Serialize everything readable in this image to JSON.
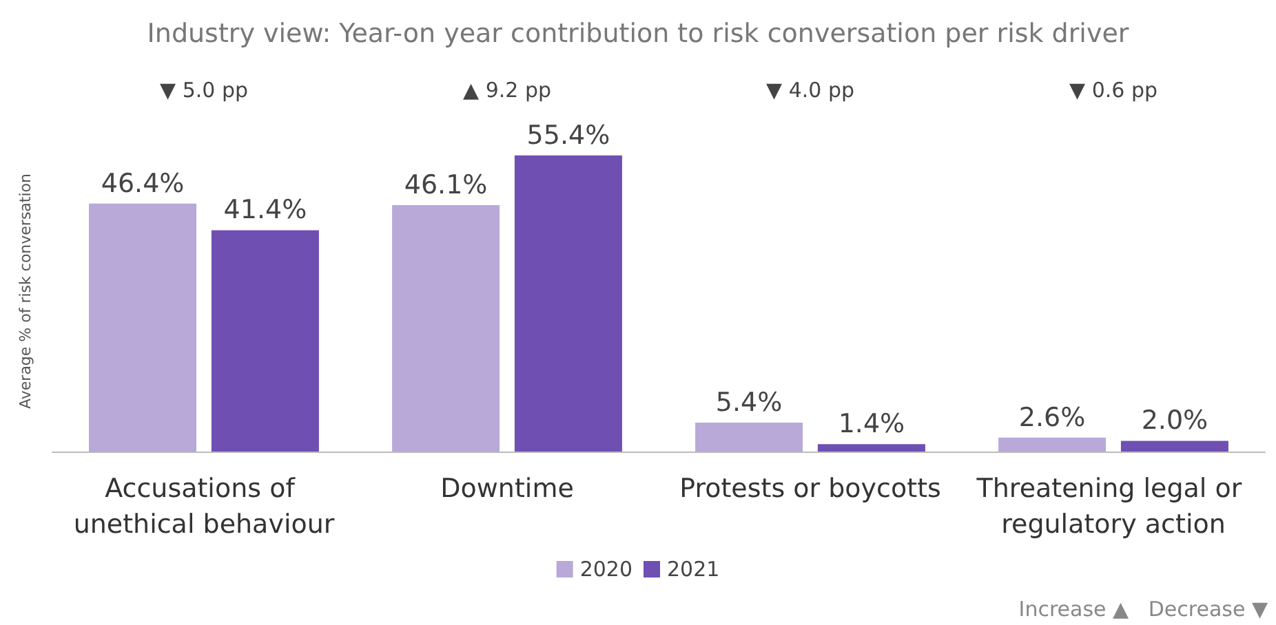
{
  "chart_data": {
    "type": "bar",
    "title": "Industry view: Year-on year contribution to risk conversation per risk driver",
    "ylabel": "Average % of risk conversation",
    "categories": [
      "Accusations of unethical behaviour",
      "Downtime",
      "Protests or boycotts",
      "Threatening legal or regulatory action"
    ],
    "series": [
      {
        "name": "2020",
        "color": "#b8a9d9",
        "values": [
          46.4,
          46.1,
          5.4,
          2.6
        ],
        "value_labels": [
          "46.4%",
          "46.1%",
          "5.4%",
          "2.6%"
        ]
      },
      {
        "name": "2021",
        "color": "#6f4fb2",
        "values": [
          41.4,
          55.4,
          1.4,
          2.0
        ],
        "value_labels": [
          "41.4%",
          "55.4%",
          "1.4%",
          "2.0%"
        ]
      }
    ],
    "annotations": [
      "▼ 5.0 pp",
      "▲ 9.2 pp",
      "▼ 4.0 pp",
      "▼ 0.6 pp",
      "Increase ▲   Decrease ▼"
    ],
    "legend": "bottom",
    "grid": false
  }
}
